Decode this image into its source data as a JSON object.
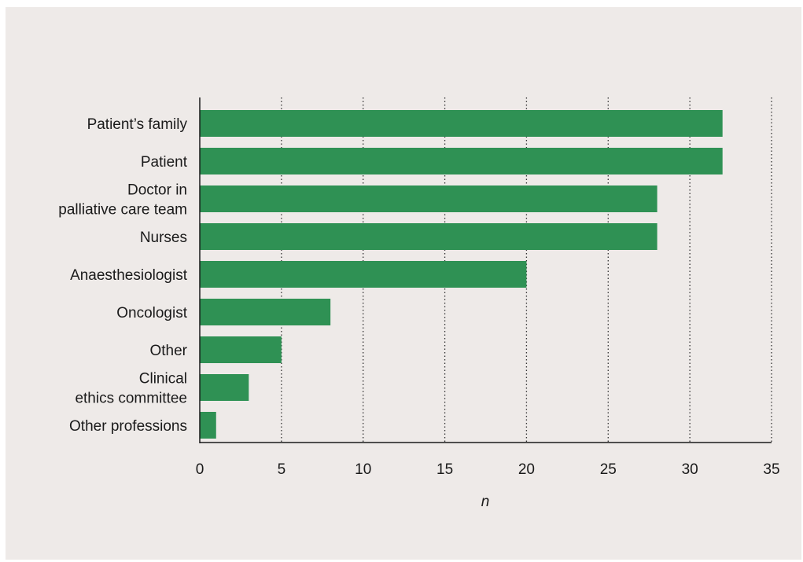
{
  "chart_data": {
    "type": "bar",
    "orientation": "horizontal",
    "categories": [
      [
        "Patient’s family"
      ],
      [
        "Patient"
      ],
      [
        "Doctor in",
        "palliative care team"
      ],
      [
        "Nurses"
      ],
      [
        "Anaesthesiologist"
      ],
      [
        "Oncologist"
      ],
      [
        "Other"
      ],
      [
        "Clinical",
        "ethics committee"
      ],
      [
        "Other professions"
      ]
    ],
    "values": [
      32,
      32,
      28,
      28,
      20,
      8,
      5,
      3,
      1
    ],
    "xlabel": "n",
    "ylabel": "",
    "xlim": [
      0,
      35
    ],
    "xticks": [
      "0",
      "5",
      "10",
      "15",
      "20",
      "25",
      "30",
      "35"
    ],
    "grid": "vertical dotted",
    "colors": {
      "bar": "#2f9154",
      "background": "#eeeae8",
      "axis": "#1a1a1a",
      "grid": "#333333"
    }
  }
}
